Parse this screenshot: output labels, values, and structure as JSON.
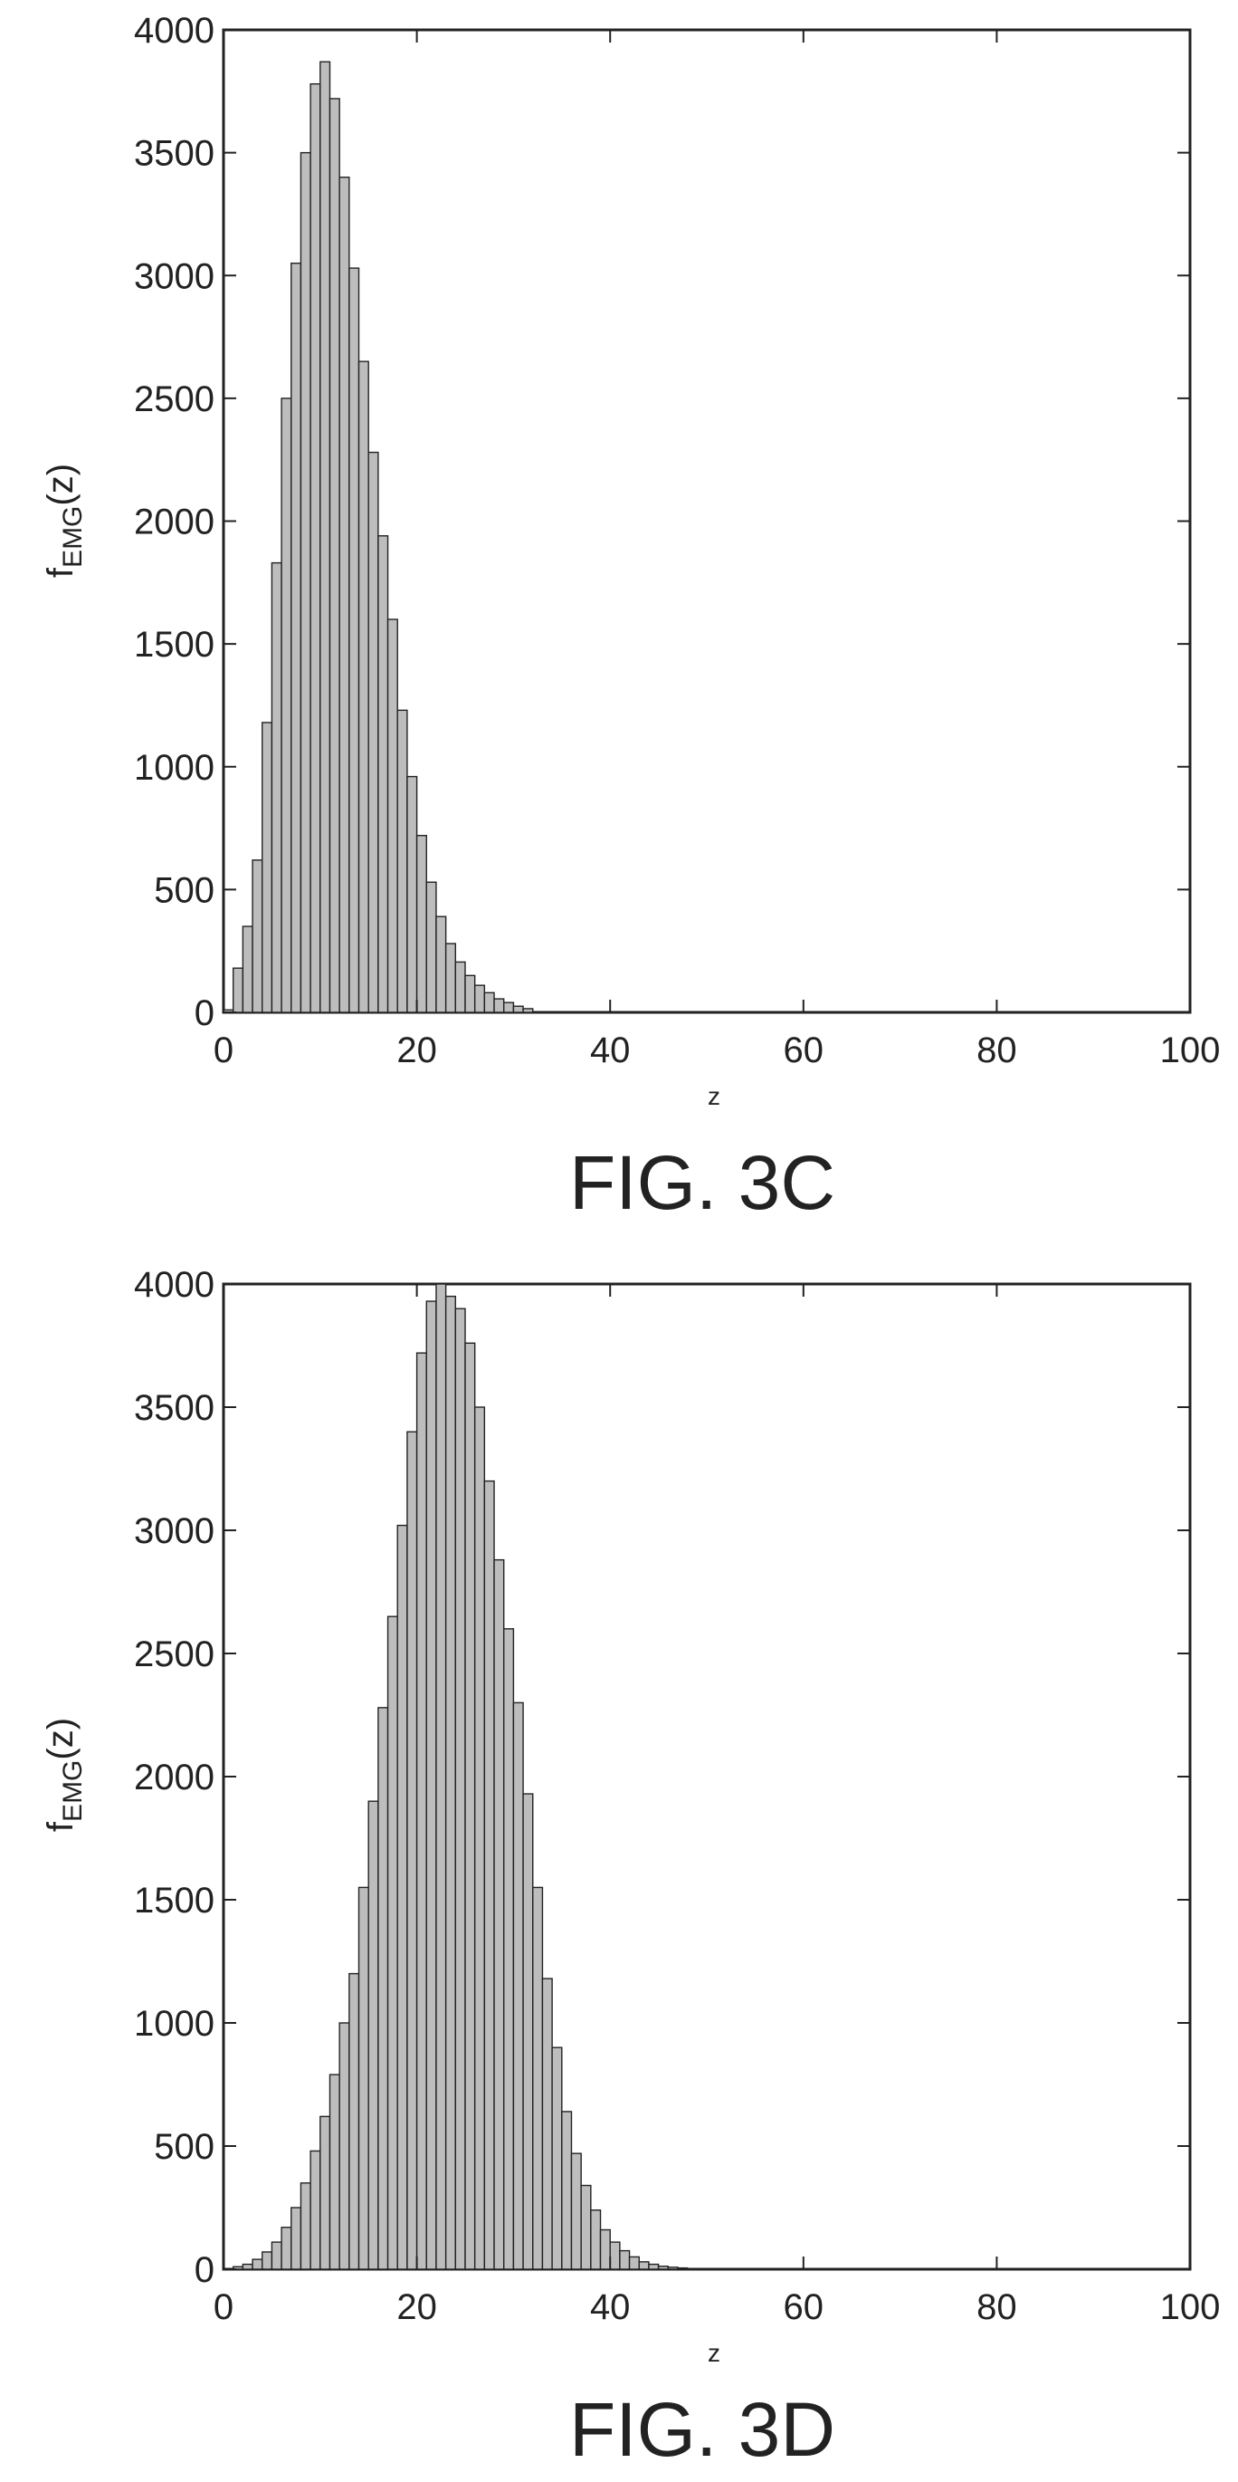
{
  "figures": [
    {
      "caption": "FIG. 3C",
      "chart_data": {
        "type": "bar",
        "title": "",
        "xlabel": "z",
        "ylabel": "f",
        "ylabel_sub": "EMG",
        "ylabel_suffix": "(z)",
        "xlim": [
          0,
          100
        ],
        "ylim": [
          0,
          4000
        ],
        "xticks": [
          0,
          20,
          40,
          60,
          80,
          100
        ],
        "yticks": [
          0,
          500,
          1000,
          1500,
          2000,
          2500,
          3000,
          3500,
          4000
        ],
        "grid": false,
        "bin_width": 1,
        "x": [
          0,
          1,
          2,
          3,
          4,
          5,
          6,
          7,
          8,
          9,
          10,
          11,
          12,
          13,
          14,
          15,
          16,
          17,
          18,
          19,
          20,
          21,
          22,
          23,
          24,
          25,
          26,
          27,
          28,
          29,
          30,
          31
        ],
        "values": [
          10,
          180,
          350,
          620,
          1180,
          1830,
          2500,
          3050,
          3500,
          3780,
          3870,
          3720,
          3400,
          3030,
          2650,
          2280,
          1940,
          1600,
          1230,
          960,
          720,
          530,
          390,
          280,
          205,
          150,
          110,
          80,
          55,
          40,
          25,
          15
        ]
      }
    },
    {
      "caption": "FIG. 3D",
      "chart_data": {
        "type": "bar",
        "title": "",
        "xlabel": "z",
        "ylabel": "f",
        "ylabel_sub": "EMG",
        "ylabel_suffix": "(z)",
        "xlim": [
          0,
          100
        ],
        "ylim": [
          0,
          4000
        ],
        "xticks": [
          0,
          20,
          40,
          60,
          80,
          100
        ],
        "yticks": [
          0,
          500,
          1000,
          1500,
          2000,
          2500,
          3000,
          3500,
          4000
        ],
        "grid": false,
        "bin_width": 1,
        "x": [
          1,
          2,
          3,
          4,
          5,
          6,
          7,
          8,
          9,
          10,
          11,
          12,
          13,
          14,
          15,
          16,
          17,
          18,
          19,
          20,
          21,
          22,
          23,
          24,
          25,
          26,
          27,
          28,
          29,
          30,
          31,
          32,
          33,
          34,
          35,
          36,
          37,
          38,
          39,
          40,
          41,
          42,
          43,
          44,
          45,
          46,
          47
        ],
        "values": [
          10,
          20,
          40,
          70,
          110,
          170,
          250,
          350,
          480,
          620,
          790,
          1000,
          1200,
          1550,
          1900,
          2280,
          2650,
          3020,
          3400,
          3720,
          3930,
          4000,
          3950,
          3900,
          3760,
          3500,
          3200,
          2880,
          2600,
          2300,
          1930,
          1550,
          1180,
          900,
          640,
          470,
          340,
          240,
          160,
          110,
          75,
          50,
          30,
          20,
          12,
          8,
          5
        ]
      }
    }
  ]
}
